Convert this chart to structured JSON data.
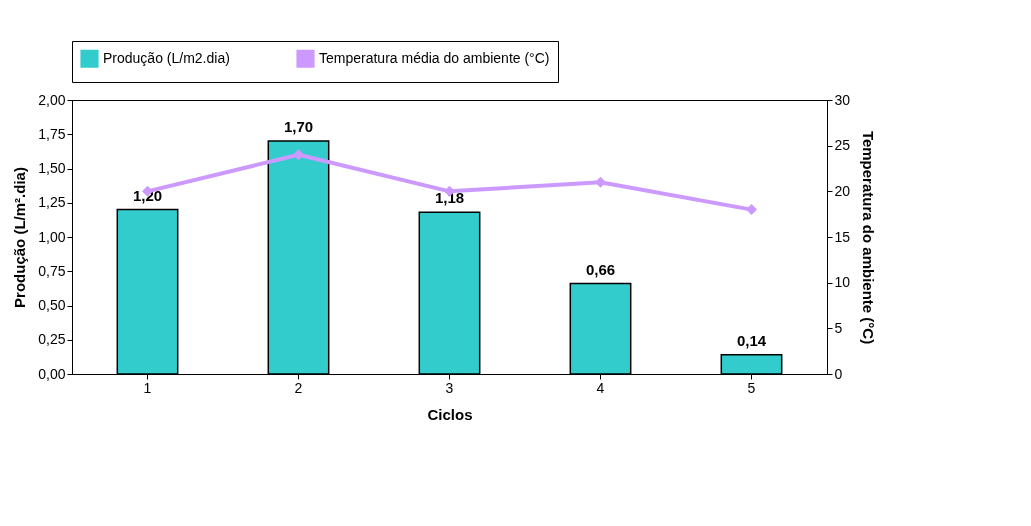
{
  "chart_data": {
    "type": "bar",
    "xlabel": "Ciclos",
    "ylabel": "Produção (L/m².dia)",
    "y2label": "Temperatura do ambiente (°C)",
    "categories": [
      "1",
      "2",
      "3",
      "4",
      "5"
    ],
    "series": [
      {
        "name": "Produção (L/m2.dia)",
        "color": "#33cccc",
        "values": [
          1.2,
          1.7,
          1.18,
          0.66,
          0.14
        ],
        "value_labels": [
          "1,20",
          "1,70",
          "1,18",
          "0,66",
          "0,14"
        ]
      },
      {
        "name": "Temperatura média do ambiente (°C)",
        "type": "line",
        "axis": "y2",
        "color": "#cc99ff",
        "values": [
          20,
          24,
          20,
          21,
          18
        ]
      }
    ],
    "ylim": [
      0,
      2
    ],
    "yticks": [
      {
        "value": 0,
        "label": "0,00"
      },
      {
        "value": 0.25,
        "label": "0,25"
      },
      {
        "value": 0.5,
        "label": "0,50"
      },
      {
        "value": 0.75,
        "label": "0,75"
      },
      {
        "value": 1,
        "label": "1,00"
      },
      {
        "value": 1.25,
        "label": "1,25"
      },
      {
        "value": 1.5,
        "label": "1,50"
      },
      {
        "value": 1.75,
        "label": "1,75"
      },
      {
        "value": 2,
        "label": "2,00"
      }
    ],
    "y2lim": [
      0,
      30
    ],
    "y2ticks": [
      0,
      5,
      10,
      15,
      20,
      25,
      30
    ],
    "legend": "top",
    "marker": "diamond",
    "line_style": "solid"
  }
}
